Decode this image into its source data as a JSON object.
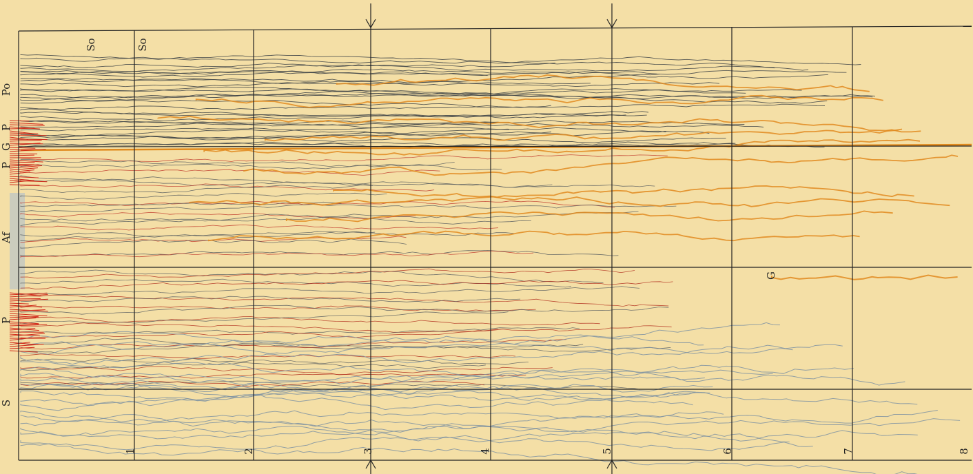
{
  "plate": {
    "region_labels": [
      "So",
      "So",
      "Po",
      "P",
      "G",
      "P",
      "Af",
      "P",
      "S",
      "G"
    ],
    "scale_numbers": [
      "1",
      "2",
      "3",
      "4",
      "5",
      "6",
      "7",
      "8"
    ]
  }
}
